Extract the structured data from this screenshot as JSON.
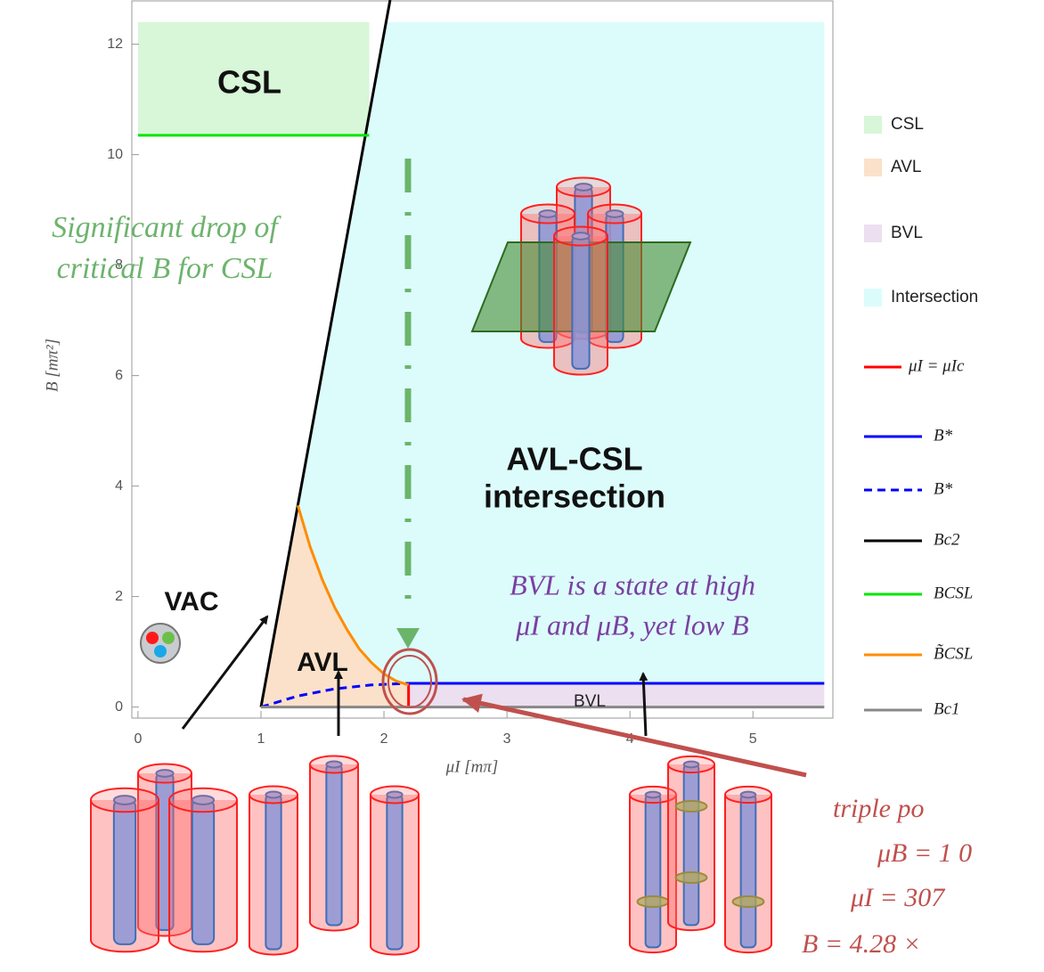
{
  "chart_data": {
    "type": "phase-diagram",
    "xlabel": "μI [mπ]",
    "ylabel": "B [mπ²]",
    "xlim": [
      -0.05,
      5.65
    ],
    "ylim": [
      -0.2,
      12.8
    ],
    "xticks": [
      0,
      1,
      2,
      3,
      4,
      5
    ],
    "yticks": [
      0,
      2,
      4,
      6,
      8,
      10,
      12
    ],
    "regions": [
      {
        "name": "CSL",
        "color": "#d8f6d8",
        "x": [
          0,
          1.88,
          1.88,
          0
        ],
        "y": [
          10.35,
          10.35,
          12.4,
          12.4
        ]
      },
      {
        "name": "AVL",
        "color": "#fbe1c9",
        "x": [
          1,
          1.3,
          1.4,
          1.5,
          1.6,
          1.7,
          1.8,
          1.9,
          2.0,
          2.1,
          2.2,
          2.2
        ],
        "y": [
          0,
          3.65,
          2.9,
          2.3,
          1.8,
          1.4,
          1.05,
          0.8,
          0.6,
          0.47,
          0.4,
          0
        ]
      },
      {
        "name": "BVL",
        "color": "#ecdff0",
        "x": [
          2.2,
          5.58,
          5.58,
          2.2
        ],
        "y": [
          0,
          0,
          0.43,
          0.43
        ]
      },
      {
        "name": "Intersection",
        "color": "#dcfcfc",
        "x": [
          1.3,
          2.02,
          5.58,
          5.58,
          2.2,
          2.1,
          2.0,
          1.9,
          1.8,
          1.7,
          1.6,
          1.5,
          1.4
        ],
        "y": [
          3.65,
          12.4,
          12.4,
          0.43,
          0.43,
          0.47,
          0.6,
          0.8,
          1.05,
          1.4,
          1.8,
          2.3,
          2.9
        ]
      }
    ],
    "series": [
      {
        "name": "μI = μIc",
        "color": "#ff0000",
        "dash": false,
        "x": [
          2.2,
          2.2
        ],
        "values": [
          0,
          0.42
        ]
      },
      {
        "name": "B*",
        "color": "#0000ff",
        "dash": false,
        "x": [
          2.2,
          5.58
        ],
        "values": [
          0.43,
          0.43
        ]
      },
      {
        "name": "B*",
        "color": "#0000ff",
        "dash": true,
        "x": [
          1,
          1.3,
          1.6,
          1.9,
          2.2
        ],
        "values": [
          0,
          0.2,
          0.33,
          0.4,
          0.43
        ]
      },
      {
        "name": "Bc2",
        "color": "#000000",
        "dash": false,
        "x": [
          1,
          2.05
        ],
        "values": [
          0,
          12.8
        ]
      },
      {
        "name": "BCSL",
        "color": "#00e600",
        "dash": false,
        "x": [
          0,
          1.88
        ],
        "values": [
          10.35,
          10.35
        ]
      },
      {
        "name": "B̃CSL",
        "color": "#ff8c00",
        "dash": false,
        "x": [
          1.3,
          1.4,
          1.5,
          1.6,
          1.7,
          1.8,
          1.9,
          2.0,
          2.1,
          2.2
        ],
        "values": [
          3.65,
          2.9,
          2.3,
          1.8,
          1.4,
          1.05,
          0.8,
          0.6,
          0.47,
          0.4
        ]
      },
      {
        "name": "Bc1",
        "color": "#888888",
        "dash": false,
        "x": [
          1,
          5.58
        ],
        "values": [
          0,
          0
        ]
      }
    ],
    "annotations": [
      "CSL",
      "VAC",
      "AVL",
      "BVL",
      "AVL-CSL",
      "intersection",
      "Significant drop of",
      "critical B for CSL",
      "BVL is a state at high",
      "μI and μB, yet low B",
      "triple po",
      "μB = 1 0",
      "μI = 307",
      "B = 4.28 ×"
    ]
  }
}
